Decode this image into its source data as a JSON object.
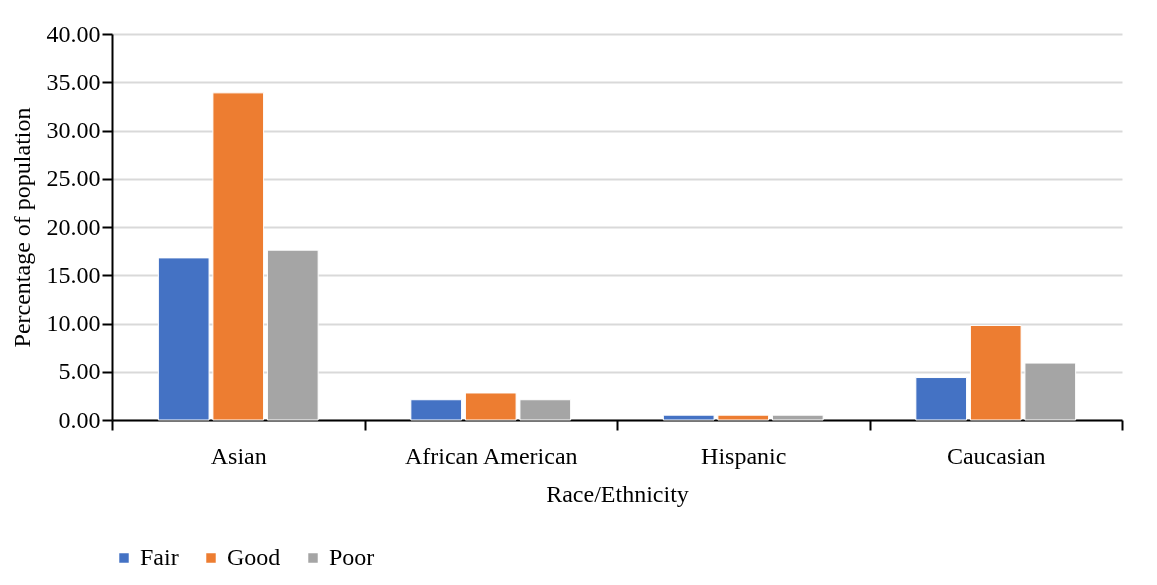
{
  "chart_data": {
    "type": "bar",
    "xlabel": "Race/Ethnicity",
    "ylabel": "Percentage of population",
    "categories": [
      "Asian",
      "African American",
      "Hispanic",
      "Caucasian"
    ],
    "series": [
      {
        "name": "Fair",
        "color": "#4472c4",
        "values": [
          16.8,
          2.1,
          0.5,
          4.4
        ]
      },
      {
        "name": "Good",
        "color": "#ed7d31",
        "values": [
          33.9,
          2.8,
          0.5,
          9.8
        ]
      },
      {
        "name": "Poor",
        "color": "#a5a5a5",
        "values": [
          17.6,
          2.1,
          0.5,
          5.9
        ]
      }
    ],
    "ylim": [
      0,
      40
    ],
    "yticks": [
      {
        "value": 0,
        "label": "0.00"
      },
      {
        "value": 5,
        "label": "5.00"
      },
      {
        "value": 10,
        "label": "10.00"
      },
      {
        "value": 15,
        "label": "15.00"
      },
      {
        "value": 20,
        "label": "20.00"
      },
      {
        "value": 25,
        "label": "25.00"
      },
      {
        "value": 30,
        "label": "30.00"
      },
      {
        "value": 35,
        "label": "35.00"
      },
      {
        "value": 40,
        "label": "40.00"
      }
    ],
    "grid": "y",
    "legend": "bottom"
  }
}
